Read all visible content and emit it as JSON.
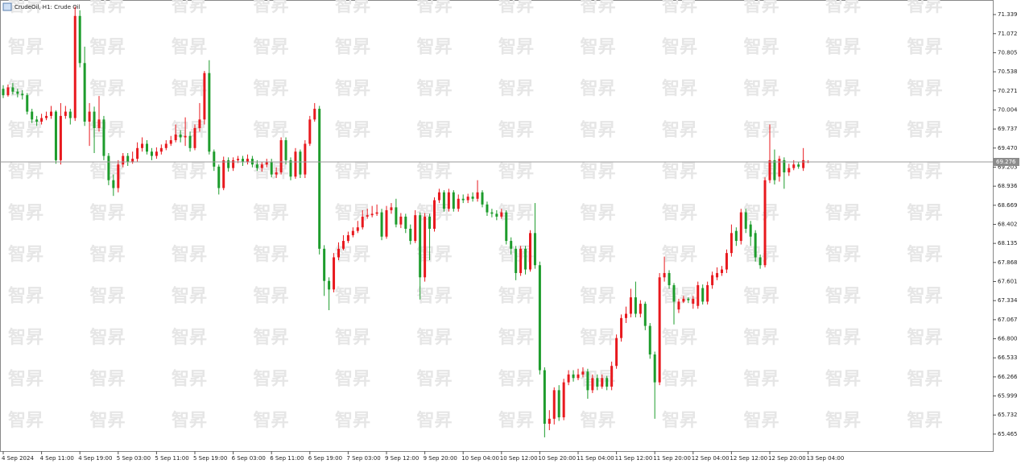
{
  "chart_data": {
    "type": "candlestick",
    "title": "CrudeOil, H1:  Crude Oil",
    "watermark": "智昇",
    "up_color": "#e8191e",
    "down_color": "#1d9c2c",
    "current_price": 69.276,
    "ylim": [
      65.227,
      71.543
    ],
    "yticks": [
      71.339,
      71.072,
      70.805,
      70.538,
      70.271,
      70.004,
      69.737,
      {
        "value": 69.47,
        "label": "69.470"
      },
      69.203,
      68.936,
      68.669,
      68.402,
      68.135,
      67.868,
      67.601,
      67.334,
      67.067,
      {
        "value": 66.8,
        "label": "66.800"
      },
      66.533,
      66.266,
      65.999,
      65.732,
      65.465
    ],
    "categories": [
      "4 Sep 2024",
      null,
      null,
      null,
      null,
      null,
      null,
      null,
      "4 Sep 11:00",
      null,
      null,
      null,
      null,
      null,
      null,
      null,
      "4 Sep 19:00",
      null,
      null,
      null,
      null,
      null,
      null,
      null,
      "5 Sep 03:00",
      null,
      null,
      null,
      null,
      null,
      null,
      null,
      "5 Sep 11:00",
      null,
      null,
      null,
      null,
      null,
      null,
      null,
      "5 Sep 19:00",
      null,
      null,
      null,
      null,
      null,
      null,
      null,
      "6 Sep 03:00",
      null,
      null,
      null,
      null,
      null,
      null,
      null,
      "6 Sep 11:00",
      null,
      null,
      null,
      null,
      null,
      null,
      null,
      "6 Sep 19:00",
      null,
      null,
      null,
      null,
      null,
      null,
      null,
      "7 Sep 03:00",
      null,
      null,
      null,
      null,
      null,
      null,
      null,
      "9 Sep 12:00",
      null,
      null,
      null,
      null,
      null,
      null,
      null,
      "9 Sep 20:00",
      null,
      null,
      null,
      null,
      null,
      null,
      null,
      "10 Sep 04:00",
      null,
      null,
      null,
      null,
      null,
      null,
      null,
      "10 Sep 12:00",
      null,
      null,
      null,
      null,
      null,
      null,
      null,
      "10 Sep 20:00",
      null,
      null,
      null,
      null,
      null,
      null,
      null,
      "11 Sep 04:00",
      null,
      null,
      null,
      null,
      null,
      null,
      null,
      "11 Sep 12:00",
      null,
      null,
      null,
      null,
      null,
      null,
      null,
      "11 Sep 20:00",
      null,
      null,
      null,
      null,
      null,
      null,
      null,
      "12 Sep 04:00",
      null,
      null,
      null,
      null,
      null,
      null,
      null,
      "12 Sep 12:00",
      null,
      null,
      null,
      null,
      null,
      null,
      null,
      "12 Sep 20:00",
      null,
      null,
      null,
      null,
      null,
      null,
      null,
      "13 Sep 04:00"
    ],
    "open": [
      70.3,
      70.21,
      70.32,
      70.26,
      70.23,
      70.21,
      69.98,
      69.87,
      69.84,
      69.89,
      69.92,
      69.98,
      69.3,
      69.92,
      69.98,
      69.89,
      71.32,
      70.66,
      69.84,
      69.98,
      69.75,
      69.87,
      69.36,
      69.02,
      68.91,
      69.24,
      69.36,
      69.27,
      69.32,
      69.47,
      69.53,
      69.42,
      69.36,
      69.42,
      69.47,
      69.53,
      69.58,
      69.66,
      69.62,
      69.64,
      69.47,
      69.75,
      69.87,
      70.52,
      69.42,
      69.21,
      68.91,
      69.3,
      69.19,
      69.3,
      69.32,
      69.27,
      69.32,
      69.24,
      69.19,
      69.24,
      69.28,
      69.1,
      69.13,
      69.58,
      69.3,
      69.07,
      69.42,
      69.1,
      69.53,
      69.87,
      70.02,
      68.06,
      67.61,
      67.49,
      67.94,
      68.06,
      68.17,
      68.25,
      68.31,
      68.36,
      68.51,
      68.53,
      68.55,
      68.57,
      68.23,
      68.6,
      68.64,
      68.4,
      68.51,
      68.34,
      68.17,
      68.53,
      67.66,
      68.51,
      68.34,
      68.74,
      68.85,
      68.62,
      68.85,
      68.62,
      68.76,
      68.74,
      68.79,
      68.76,
      68.85,
      68.68,
      68.57,
      68.55,
      68.51,
      68.57,
      68.17,
      68.06,
      67.72,
      68.06,
      67.77,
      68.28,
      67.83,
      66.36,
      65.61,
      65.68,
      66.08,
      65.7,
      66.19,
      66.3,
      66.25,
      66.3,
      66.34,
      66.08,
      66.25,
      66.13,
      66.25,
      66.13,
      66.42,
      66.81,
      67.09,
      67.15,
      67.38,
      67.15,
      67.29,
      66.98,
      66.58,
      66.19,
      67.66,
      67.72,
      67.55,
      67.21,
      67.32,
      67.36,
      67.29,
      67.26,
      67.51,
      67.32,
      67.55,
      67.66,
      67.72,
      67.77,
      68.0,
      68.31,
      68.17,
      68.57,
      68.4,
      68.28,
      67.94,
      67.83,
      69.02,
      69.3,
      69.07,
      69.3,
      69.13,
      69.19,
      69.24,
      69.19,
      69.28
    ],
    "high": [
      70.35,
      70.36,
      70.38,
      70.3,
      70.28,
      70.24,
      70.02,
      69.92,
      69.95,
      69.98,
      70.06,
      70.0,
      70.1,
      70.06,
      70.02,
      71.45,
      71.4,
      70.89,
      70.1,
      70.05,
      70.2,
      69.92,
      69.4,
      69.1,
      69.3,
      69.4,
      69.4,
      69.42,
      69.55,
      69.62,
      69.58,
      69.47,
      69.48,
      69.52,
      69.58,
      69.64,
      69.8,
      69.72,
      69.9,
      69.7,
      69.8,
      70.1,
      70.55,
      70.7,
      69.45,
      69.24,
      69.35,
      69.34,
      69.34,
      69.36,
      69.36,
      69.38,
      69.36,
      69.3,
      69.28,
      69.32,
      69.32,
      69.2,
      69.62,
      69.62,
      69.34,
      69.47,
      69.45,
      69.58,
      69.92,
      70.1,
      70.06,
      68.11,
      67.66,
      68.0,
      68.15,
      68.25,
      68.3,
      68.36,
      68.45,
      68.6,
      68.62,
      68.66,
      68.68,
      68.62,
      68.66,
      68.7,
      68.76,
      68.56,
      68.55,
      68.4,
      68.6,
      68.57,
      68.56,
      68.55,
      68.78,
      68.9,
      68.88,
      68.9,
      68.88,
      68.82,
      68.82,
      68.83,
      68.85,
      69.02,
      68.88,
      68.72,
      68.62,
      68.6,
      68.62,
      68.6,
      68.22,
      68.1,
      68.1,
      68.1,
      68.32,
      68.7,
      67.88,
      66.4,
      65.8,
      66.12,
      66.15,
      66.24,
      66.36,
      66.36,
      66.38,
      66.4,
      66.38,
      66.3,
      66.3,
      66.3,
      66.28,
      66.48,
      66.86,
      67.14,
      67.25,
      67.5,
      67.6,
      67.34,
      67.32,
      67.02,
      66.62,
      67.72,
      67.95,
      67.76,
      67.58,
      67.36,
      67.4,
      67.38,
      67.4,
      67.6,
      67.56,
      67.6,
      67.74,
      67.8,
      67.82,
      68.05,
      68.4,
      68.36,
      68.62,
      68.62,
      68.45,
      68.32,
      67.98,
      69.06,
      69.8,
      69.45,
      69.36,
      69.34,
      69.25,
      69.3,
      69.28,
      69.47,
      69.3
    ],
    "low": [
      70.17,
      70.19,
      70.22,
      70.18,
      70.15,
      69.94,
      69.82,
      69.78,
      69.8,
      69.86,
      69.88,
      69.25,
      69.24,
      69.88,
      69.8,
      69.85,
      70.6,
      69.78,
      69.5,
      69.4,
      69.7,
      69.3,
      68.95,
      68.8,
      68.85,
      69.2,
      69.22,
      69.25,
      69.28,
      69.42,
      69.38,
      69.3,
      69.32,
      69.38,
      69.44,
      69.5,
      69.55,
      69.55,
      69.5,
      69.42,
      69.44,
      69.7,
      69.8,
      69.38,
      69.15,
      68.82,
      68.88,
      69.14,
      69.15,
      69.26,
      69.22,
      69.24,
      69.2,
      69.15,
      69.14,
      69.2,
      69.06,
      69.05,
      69.1,
      69.24,
      69.02,
      69.04,
      69.05,
      69.05,
      69.5,
      69.84,
      67.98,
      67.4,
      67.2,
      67.45,
      67.9,
      68.04,
      68.14,
      68.22,
      68.28,
      68.33,
      68.48,
      68.5,
      68.52,
      68.18,
      68.2,
      68.55,
      68.36,
      68.35,
      68.28,
      68.12,
      68.14,
      67.35,
      67.6,
      67.9,
      68.3,
      68.7,
      68.58,
      68.58,
      68.58,
      68.58,
      68.7,
      68.7,
      68.72,
      68.72,
      68.64,
      68.52,
      68.5,
      68.46,
      68.48,
      68.12,
      67.98,
      67.62,
      67.68,
      67.7,
      67.74,
      67.78,
      66.3,
      65.42,
      65.52,
      65.6,
      65.65,
      65.66,
      66.15,
      66.2,
      66.22,
      66.26,
      65.96,
      66.04,
      66.08,
      66.1,
      66.08,
      66.08,
      66.38,
      66.76,
      67.02,
      67.1,
      67.1,
      67.1,
      66.92,
      66.52,
      65.68,
      66.15,
      67.6,
      67.5,
      67.0,
      67.16,
      67.3,
      67.3,
      67.22,
      67.22,
      67.28,
      67.28,
      67.5,
      67.62,
      67.68,
      67.72,
      67.95,
      68.1,
      68.12,
      68.28,
      68.1,
      67.88,
      67.78,
      67.8,
      68.98,
      68.96,
      69.0,
      68.9,
      69.08,
      69.16,
      69.18,
      69.15,
      69.26
    ],
    "close": [
      70.21,
      70.32,
      70.26,
      70.23,
      70.21,
      69.98,
      69.87,
      69.84,
      69.89,
      69.92,
      69.98,
      69.3,
      69.92,
      69.98,
      69.89,
      71.32,
      70.66,
      69.84,
      69.98,
      69.75,
      69.87,
      69.36,
      69.02,
      68.91,
      69.24,
      69.36,
      69.27,
      69.32,
      69.47,
      69.53,
      69.42,
      69.36,
      69.42,
      69.47,
      69.53,
      69.58,
      69.66,
      69.62,
      69.64,
      69.47,
      69.75,
      69.87,
      70.52,
      69.42,
      69.21,
      68.91,
      69.3,
      69.19,
      69.3,
      69.32,
      69.27,
      69.32,
      69.24,
      69.19,
      69.24,
      69.28,
      69.1,
      69.13,
      69.58,
      69.3,
      69.07,
      69.42,
      69.1,
      69.53,
      69.87,
      70.02,
      68.06,
      67.61,
      67.49,
      67.94,
      68.06,
      68.17,
      68.25,
      68.31,
      68.36,
      68.51,
      68.53,
      68.55,
      68.57,
      68.23,
      68.6,
      68.64,
      68.4,
      68.51,
      68.34,
      68.17,
      68.53,
      67.66,
      68.51,
      68.34,
      68.74,
      68.85,
      68.62,
      68.85,
      68.62,
      68.76,
      68.74,
      68.79,
      68.76,
      68.85,
      68.68,
      68.57,
      68.55,
      68.51,
      68.57,
      68.17,
      68.06,
      67.72,
      68.06,
      67.77,
      68.28,
      67.83,
      66.36,
      65.61,
      65.68,
      66.08,
      65.7,
      66.19,
      66.3,
      66.25,
      66.3,
      66.34,
      66.08,
      66.25,
      66.13,
      66.25,
      66.13,
      66.42,
      66.81,
      67.09,
      67.15,
      67.38,
      67.15,
      67.29,
      66.98,
      66.58,
      66.19,
      67.66,
      67.72,
      67.55,
      67.32,
      67.32,
      67.36,
      67.34,
      67.36,
      67.55,
      67.32,
      67.55,
      67.69,
      67.72,
      67.77,
      68.0,
      68.28,
      68.17,
      68.57,
      68.34,
      68.23,
      67.94,
      67.83,
      69.02,
      69.3,
      69.02,
      69.32,
      69.13,
      69.19,
      69.24,
      69.21,
      69.3,
      69.28
    ]
  }
}
